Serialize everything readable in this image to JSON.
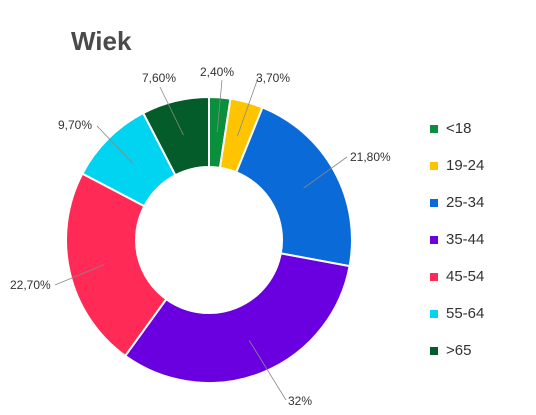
{
  "chart_data": {
    "type": "pie",
    "donut": true,
    "title": "Wiek",
    "legend_position": "right",
    "categories": [
      "<18",
      "19-24",
      "25-34",
      "35-44",
      "45-54",
      "55-64",
      ">65"
    ],
    "values": [
      2.4,
      3.7,
      21.8,
      32,
      22.7,
      9.7,
      7.6
    ],
    "labels": [
      "2,40%",
      "3,70%",
      "21,80%",
      "32%",
      "22,70%",
      "9,70%",
      "7,60%"
    ],
    "colors": [
      "#0a8f3c",
      "#ffc400",
      "#0a6bd8",
      "#6a00e0",
      "#ff2a55",
      "#00d4f0",
      "#045c2a"
    ]
  }
}
